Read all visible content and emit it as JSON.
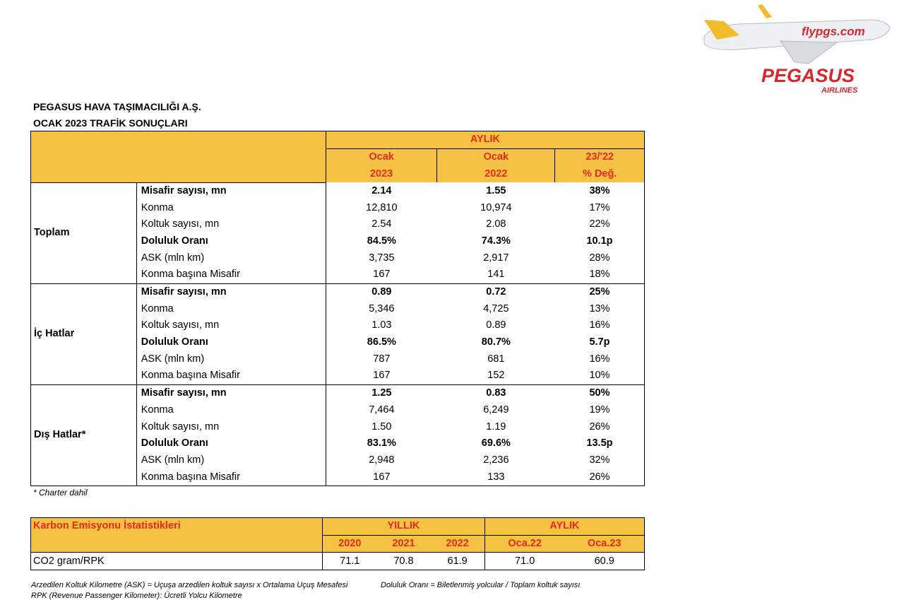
{
  "logo": {
    "site": "flypgs.com",
    "brand": "PEGASUS",
    "sub": "AIRLINES"
  },
  "header": {
    "company": "PEGASUS HAVA TAŞIMACILIĞI A.Ş.",
    "title": "OCAK 2023 TRAFİK SONUÇLARI"
  },
  "traffic_table": {
    "group_header": "AYLIK",
    "columns": [
      [
        "Ocak",
        "2023"
      ],
      [
        "Ocak",
        "2022"
      ],
      [
        "23/'22",
        "% Değ."
      ]
    ],
    "sections": [
      {
        "name": "Toplam",
        "rows": [
          {
            "label": "Misafir sayısı, mn",
            "bold": true,
            "values": [
              "2.14",
              "1.55",
              "38%"
            ]
          },
          {
            "label": "Konma",
            "bold": false,
            "values": [
              "12,810",
              "10,974",
              "17%"
            ]
          },
          {
            "label": "Koltuk sayısı, mn",
            "bold": false,
            "values": [
              "2.54",
              "2.08",
              "22%"
            ]
          },
          {
            "label": "Doluluk Oranı",
            "bold": true,
            "values": [
              "84.5%",
              "74.3%",
              "10.1p"
            ]
          },
          {
            "label": "ASK (mln km)",
            "bold": false,
            "values": [
              "3,735",
              "2,917",
              "28%"
            ]
          },
          {
            "label": "Konma başına Misafir",
            "bold": false,
            "values": [
              "167",
              "141",
              "18%"
            ]
          }
        ]
      },
      {
        "name": "İç Hatlar",
        "rows": [
          {
            "label": "Misafir sayısı, mn",
            "bold": true,
            "values": [
              "0.89",
              "0.72",
              "25%"
            ]
          },
          {
            "label": "Konma",
            "bold": false,
            "values": [
              "5,346",
              "4,725",
              "13%"
            ]
          },
          {
            "label": "Koltuk sayısı, mn",
            "bold": false,
            "values": [
              "1.03",
              "0.89",
              "16%"
            ]
          },
          {
            "label": "Doluluk Oranı",
            "bold": true,
            "values": [
              "86.5%",
              "80.7%",
              "5.7p"
            ]
          },
          {
            "label": "ASK (mln km)",
            "bold": false,
            "values": [
              "787",
              "681",
              "16%"
            ]
          },
          {
            "label": "Konma başına Misafir",
            "bold": false,
            "values": [
              "167",
              "152",
              "10%"
            ]
          }
        ]
      },
      {
        "name": "Dış Hatlar*",
        "rows": [
          {
            "label": "Misafir sayısı, mn",
            "bold": true,
            "values": [
              "1.25",
              "0.83",
              "50%"
            ]
          },
          {
            "label": "Konma",
            "bold": false,
            "values": [
              "7,464",
              "6,249",
              "19%"
            ]
          },
          {
            "label": "Koltuk sayısı, mn",
            "bold": false,
            "values": [
              "1.50",
              "1.19",
              "26%"
            ]
          },
          {
            "label": "Doluluk Oranı",
            "bold": true,
            "values": [
              "83.1%",
              "69.6%",
              "13.5p"
            ]
          },
          {
            "label": "ASK (mln km)",
            "bold": false,
            "values": [
              "2,948",
              "2,236",
              "32%"
            ]
          },
          {
            "label": "Konma başına Misafir",
            "bold": false,
            "values": [
              "167",
              "133",
              "26%"
            ]
          }
        ]
      }
    ]
  },
  "footnote": "* Charter dahil",
  "carbon_table": {
    "title": "Karbon Emisyonu İstatistikleri",
    "groups": [
      {
        "name": "YILLIK",
        "columns": [
          "2020",
          "2021",
          "2022"
        ]
      },
      {
        "name": "AYLIK",
        "columns": [
          "Oca.22",
          "Oca.23"
        ]
      }
    ],
    "row": {
      "label": "CO2 gram/RPK",
      "values": [
        "71.1",
        "70.8",
        "61.9",
        "71.0",
        "60.9"
      ]
    }
  },
  "notes": [
    "Arzedilen Koltuk Kilometre (ASK) = Uçuşa arzedilen koltuk sayısı x Ortalama Uçuş Mesafesi",
    "Doluluk Oranı = Biletlenmiş yolcular / Toplam koltuk sayısı",
    "RPK (Revenue Passenger Kilometer): Ücretli Yolcu Kilometre"
  ]
}
